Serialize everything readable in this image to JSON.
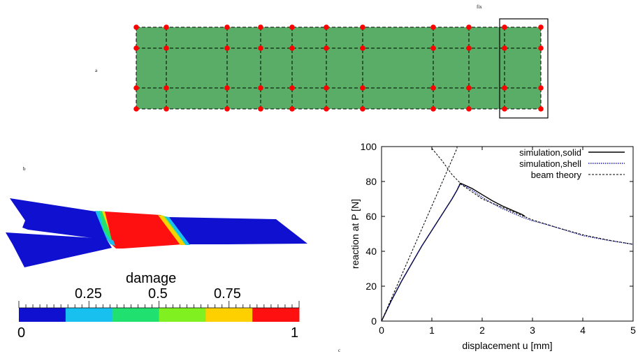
{
  "panels": {
    "a": "a",
    "b": "b",
    "c": "c",
    "fix": "fix"
  },
  "damage_legend": {
    "title": "damage",
    "min_label": "0",
    "max_label": "1",
    "tick_labels": [
      "0.25",
      "0.5",
      "0.75"
    ],
    "colors": [
      "#1010d0",
      "#18c0f0",
      "#20e070",
      "#80f020",
      "#ffd000",
      "#ff1010"
    ]
  },
  "mesh": {
    "fill_color": "#5aad66",
    "node_color": "#ff0000"
  },
  "chart_data": {
    "type": "line",
    "xlabel": "displacement u [mm]",
    "ylabel": "reaction at P [N]",
    "xlim": [
      0,
      5
    ],
    "ylim": [
      0,
      100
    ],
    "xticks": [
      "0",
      "1",
      "2",
      "3",
      "4",
      "5"
    ],
    "yticks": [
      "0",
      "20",
      "40",
      "60",
      "80",
      "100"
    ],
    "legend_position": "top-right",
    "series": [
      {
        "name": "simulation,solid",
        "style": "solid",
        "color": "#000000",
        "x": [
          0,
          0.2,
          0.4,
          0.6,
          0.8,
          1.0,
          1.2,
          1.4,
          1.5,
          1.57,
          1.65,
          1.8,
          2.0,
          2.2,
          2.4,
          2.6,
          2.8,
          2.85
        ],
        "y": [
          0,
          12,
          23,
          33,
          43,
          52,
          61,
          70,
          75,
          79,
          78,
          76,
          72.5,
          69,
          66,
          63.5,
          61,
          60
        ]
      },
      {
        "name": "simulation,shell",
        "style": "dotted",
        "color": "#1a1aa0",
        "x": [
          0,
          0.2,
          0.4,
          0.6,
          0.8,
          1.0,
          1.2,
          1.4,
          1.5,
          1.55,
          1.62,
          1.8,
          2.0,
          2.2,
          2.4,
          2.6,
          2.8,
          3.0,
          3.2,
          3.5,
          4.0,
          4.5,
          5.0
        ],
        "y": [
          0,
          12,
          23,
          33,
          43,
          52,
          61,
          70,
          75,
          78.5,
          78,
          75,
          71,
          67.5,
          64.5,
          62,
          59.5,
          57.5,
          56,
          53.5,
          49,
          46.3,
          44
        ]
      },
      {
        "name": "beam theory",
        "style": "dashed",
        "color": "#000000",
        "segments": [
          {
            "x": [
              0,
              0.5,
              1.0,
              1.5,
              1.5
            ],
            "y": [
              0,
              33,
              66,
              99,
              100
            ]
          },
          {
            "x": [
              1.0,
              1.2,
              1.4,
              1.6,
              1.8,
              2.0,
              2.5,
              3.0,
              3.5,
              4.0,
              4.5,
              5.0
            ],
            "y": [
              99,
              92,
              84,
              78,
              74,
              70,
              64,
              58,
              53.5,
              49.5,
              46.5,
              44
            ]
          }
        ]
      }
    ]
  }
}
